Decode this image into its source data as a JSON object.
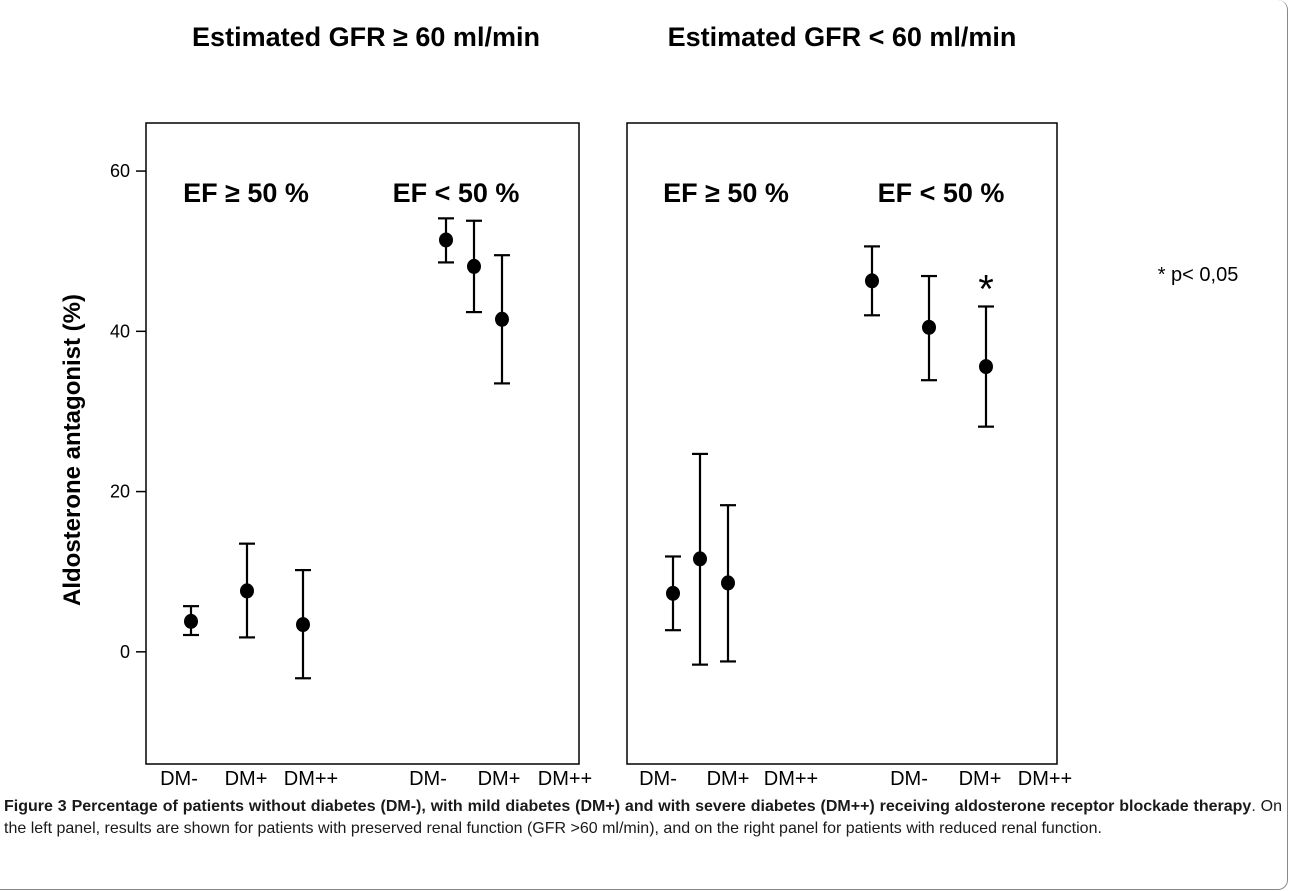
{
  "chart_data": {
    "type": "errorbar",
    "ylabel": "Aldosterone antagonist (%)",
    "yticks": [
      0,
      20,
      40,
      60
    ],
    "ylim": [
      -14,
      66
    ],
    "grid": false,
    "categories": [
      "DM-",
      "DM+",
      "DM++"
    ],
    "note": "* p< 0,05",
    "panels": [
      {
        "title": "Estimated GFR ≥ 60 ml/min",
        "groups": [
          {
            "label": "EF ≥ 50 %",
            "points": [
              {
                "category": "DM-",
                "value": 3.8,
                "lower": 2.1,
                "upper": 5.7
              },
              {
                "category": "DM+",
                "value": 7.6,
                "lower": 1.8,
                "upper": 13.5
              },
              {
                "category": "DM++",
                "value": 3.4,
                "lower": -3.3,
                "upper": 10.2
              }
            ]
          },
          {
            "label": "EF < 50 %",
            "points": [
              {
                "category": "DM-",
                "value": 51.4,
                "lower": 48.6,
                "upper": 54.1
              },
              {
                "category": "DM+",
                "value": 48.1,
                "lower": 42.4,
                "upper": 53.8
              },
              {
                "category": "DM++",
                "value": 41.5,
                "lower": 33.5,
                "upper": 49.5
              }
            ]
          }
        ]
      },
      {
        "title": "Estimated GFR < 60 ml/min",
        "groups": [
          {
            "label": "EF ≥ 50 %",
            "points": [
              {
                "category": "DM-",
                "value": 7.3,
                "lower": 2.7,
                "upper": 11.9
              },
              {
                "category": "DM+",
                "value": 11.6,
                "lower": -1.6,
                "upper": 24.7
              },
              {
                "category": "DM++",
                "value": 8.6,
                "lower": -1.2,
                "upper": 18.3
              }
            ]
          },
          {
            "label": "EF < 50 %",
            "points": [
              {
                "category": "DM-",
                "value": 46.3,
                "lower": 42.0,
                "upper": 50.6
              },
              {
                "category": "DM+",
                "value": 40.5,
                "lower": 33.9,
                "upper": 46.9
              },
              {
                "category": "DM++",
                "value": 35.6,
                "lower": 28.1,
                "upper": 43.1,
                "annotation": "*"
              }
            ]
          }
        ]
      }
    ]
  },
  "caption": {
    "bold": "Figure 3 Percentage of patients without diabetes (DM-), with mild diabetes (DM+) and with severe diabetes (DM++) receiving aldosterone receptor blockade therapy",
    "text": ". On the left panel, results are shown for patients with preserved renal function (GFR >60 ml/min), and on the right panel for patients with reduced renal function."
  }
}
